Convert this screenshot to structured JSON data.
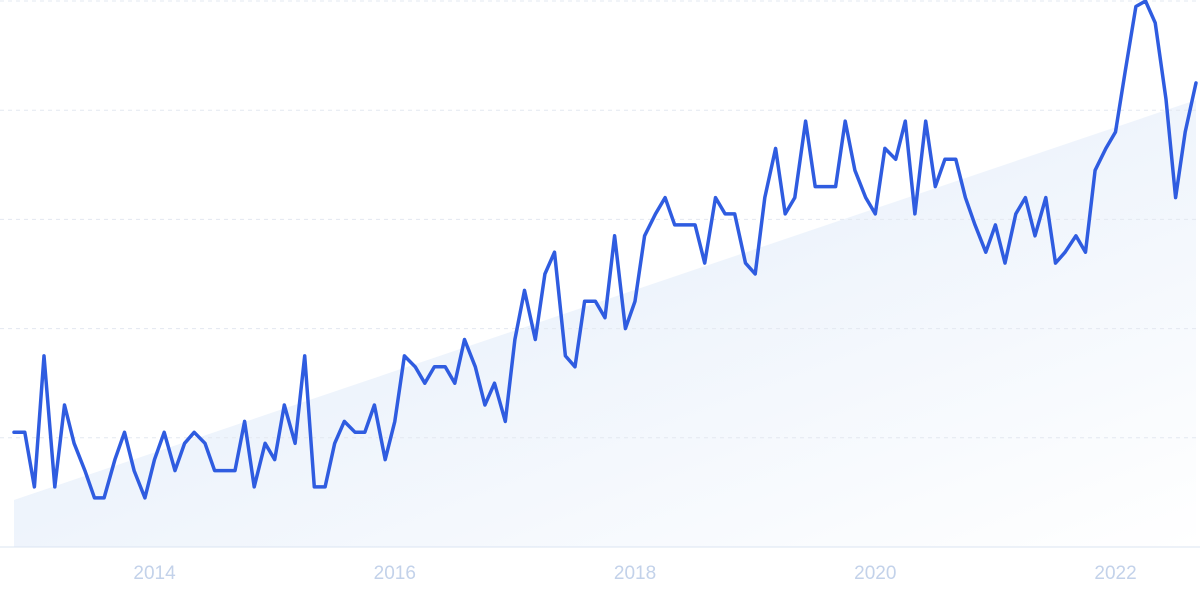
{
  "chart_data": {
    "type": "line",
    "x": [
      2012.83,
      2012.92,
      2013.0,
      2013.08,
      2013.17,
      2013.25,
      2013.33,
      2013.42,
      2013.5,
      2013.58,
      2013.67,
      2013.75,
      2013.83,
      2013.92,
      2014.0,
      2014.08,
      2014.17,
      2014.25,
      2014.33,
      2014.42,
      2014.5,
      2014.58,
      2014.67,
      2014.75,
      2014.83,
      2014.92,
      2015.0,
      2015.08,
      2015.17,
      2015.25,
      2015.33,
      2015.42,
      2015.5,
      2015.58,
      2015.67,
      2015.75,
      2015.83,
      2015.92,
      2016.0,
      2016.08,
      2016.17,
      2016.25,
      2016.33,
      2016.42,
      2016.5,
      2016.58,
      2016.67,
      2016.75,
      2016.83,
      2016.92,
      2017.0,
      2017.08,
      2017.17,
      2017.25,
      2017.33,
      2017.42,
      2017.5,
      2017.58,
      2017.67,
      2017.75,
      2017.83,
      2017.92,
      2018.0,
      2018.08,
      2018.17,
      2018.25,
      2018.33,
      2018.42,
      2018.5,
      2018.58,
      2018.67,
      2018.75,
      2018.83,
      2018.92,
      2019.0,
      2019.08,
      2019.17,
      2019.25,
      2019.33,
      2019.42,
      2019.5,
      2019.58,
      2019.67,
      2019.75,
      2019.83,
      2019.92,
      2020.0,
      2020.08,
      2020.17,
      2020.25,
      2020.33,
      2020.42,
      2020.5,
      2020.58,
      2020.67,
      2020.75,
      2020.83,
      2020.92,
      2021.0,
      2021.08,
      2021.17,
      2021.25,
      2021.33,
      2021.42,
      2021.5,
      2021.58,
      2021.67,
      2021.75,
      2021.83,
      2021.92,
      2022.0,
      2022.08,
      2022.17,
      2022.25,
      2022.33,
      2022.42,
      2022.5,
      2022.58,
      2022.67
    ],
    "series": [
      {
        "color": "#2f5ce0",
        "values": [
          21,
          21,
          11,
          35,
          11,
          26,
          19,
          14,
          9,
          9,
          16,
          21,
          14,
          9,
          16,
          21,
          14,
          19,
          21,
          19,
          14,
          14,
          14,
          23,
          11,
          19,
          16,
          26,
          19,
          35,
          11,
          11,
          19,
          23,
          21,
          21,
          26,
          16,
          23,
          35,
          33,
          30,
          33,
          33,
          30,
          38,
          33,
          26,
          30,
          23,
          38,
          47,
          38,
          50,
          54,
          35,
          33,
          45,
          45,
          42,
          57,
          40,
          45,
          57,
          61,
          64,
          59,
          59,
          59,
          52,
          64,
          61,
          61,
          52,
          50,
          64,
          73,
          61,
          64,
          78,
          66,
          66,
          66,
          78,
          69,
          64,
          61,
          73,
          71,
          78,
          61,
          78,
          66,
          71,
          71,
          64,
          59,
          54,
          59,
          52,
          61,
          64,
          57,
          64,
          52,
          54,
          57,
          54,
          69,
          73,
          76,
          87,
          99,
          100,
          96,
          82,
          64,
          76,
          85
        ]
      }
    ],
    "xlim": [
      2012.83,
      2022.67
    ],
    "xticks": [
      2014,
      2016,
      2018,
      2020,
      2022
    ],
    "ylim": [
      0,
      100
    ],
    "yticks": [
      0,
      20,
      40,
      60,
      80,
      100
    ],
    "grid": true
  }
}
